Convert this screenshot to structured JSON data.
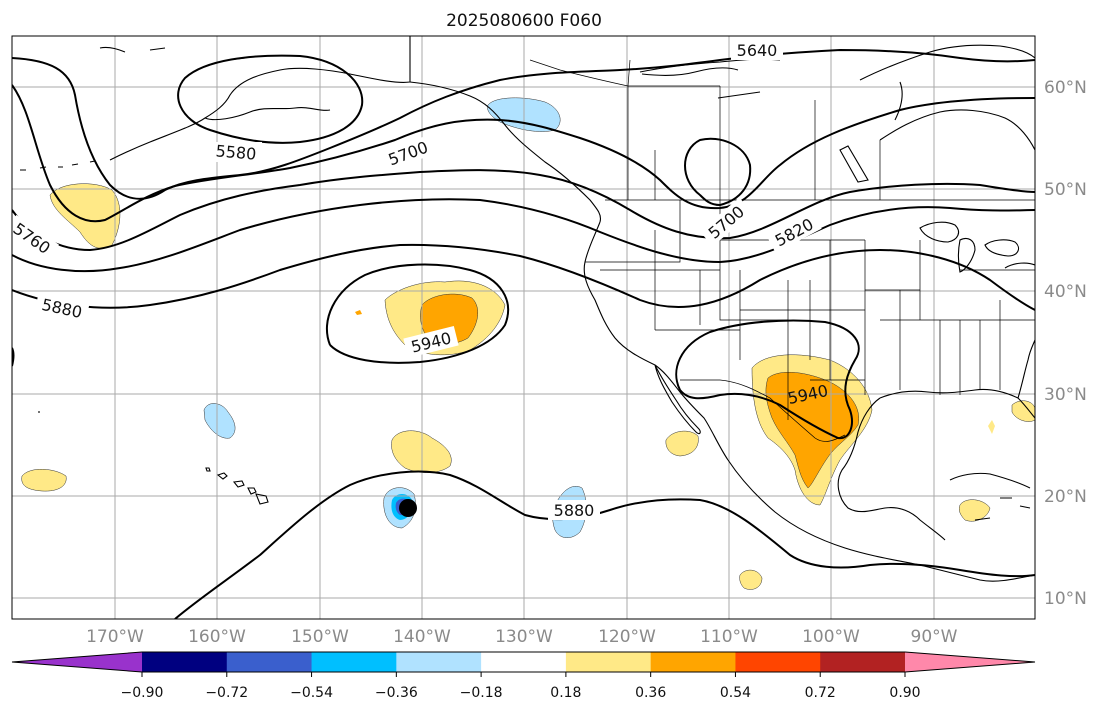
{
  "title": "2025080600 F060",
  "lon_labels": [
    "170°W",
    "160°W",
    "150°W",
    "140°W",
    "130°W",
    "120°W",
    "110°W",
    "100°W",
    "90°W"
  ],
  "lat_labels": [
    "60°N",
    "50°N",
    "40°N",
    "30°N",
    "20°N",
    "10°N"
  ],
  "contour_labels": [
    "5640",
    "5580",
    "5700",
    "5700",
    "5820",
    "5760",
    "5880",
    "5940",
    "5940",
    "5880"
  ],
  "colorbar": {
    "ticks": [
      "−0.90",
      "−0.72",
      "−0.54",
      "−0.36",
      "−0.18",
      "0.18",
      "0.36",
      "0.54",
      "0.72",
      "0.90"
    ],
    "colors": [
      "#9932cc",
      "#000080",
      "#3a5fcd",
      "#00bfff",
      "#b0e2ff",
      "#ffffff",
      "#ffe987",
      "#ffa500",
      "#ff4500",
      "#b22222",
      "#ff88aa"
    ]
  },
  "colors": {
    "light_yellow": "#ffe987",
    "orange": "#ffa500",
    "light_blue": "#b0e2ff",
    "deep_sky_blue": "#00bfff",
    "royal_blue": "#3a5fcd"
  }
}
